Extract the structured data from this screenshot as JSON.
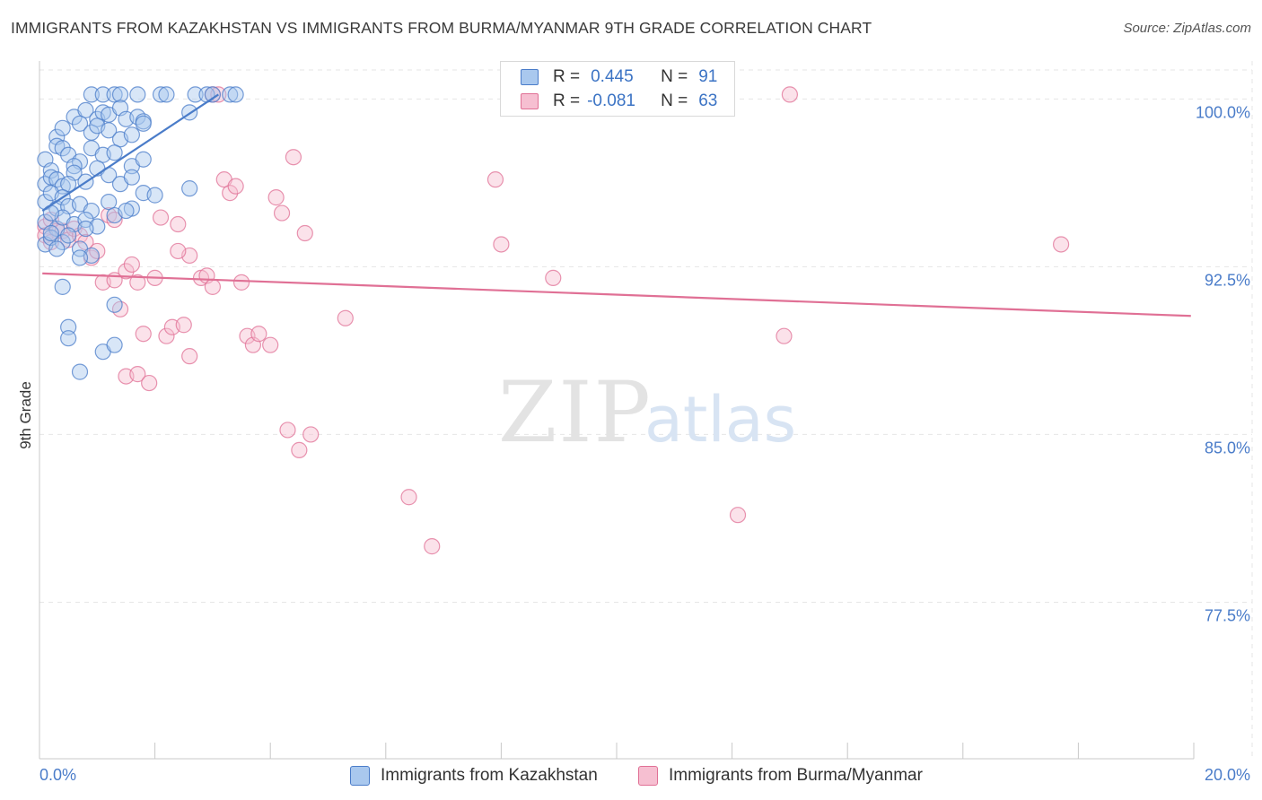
{
  "header": {
    "title": "IMMIGRANTS FROM KAZAKHSTAN VS IMMIGRANTS FROM BURMA/MYANMAR 9TH GRADE CORRELATION CHART",
    "source": "Source: ZipAtlas.com"
  },
  "watermark": {
    "zip": "ZIP",
    "atlas": "atlas"
  },
  "legend": {
    "series": [
      {
        "r_label": "R =",
        "r_value": "0.445",
        "n_label": "N =",
        "n_value": "91"
      },
      {
        "r_label": "R =",
        "r_value": "-0.081",
        "n_label": "N =",
        "n_value": "63"
      }
    ]
  },
  "chart_data": {
    "type": "scatter",
    "title": "IMMIGRANTS FROM KAZAKHSTAN VS IMMIGRANTS FROM BURMA/MYANMAR 9TH GRADE CORRELATION CHART",
    "xlabel": "",
    "ylabel": "9th Grade",
    "xlim": [
      0,
      20
    ],
    "ylim": [
      70.5,
      101.7
    ],
    "x_tick_labels": [
      "0.0%",
      "20.0%"
    ],
    "y_ticks": [
      77.5,
      85.0,
      92.5,
      100.0
    ],
    "y_tick_labels": [
      "77.5%",
      "85.0%",
      "92.5%",
      "100.0%"
    ],
    "grid": true,
    "colors": {
      "blue": "#4a7cc9",
      "blue_fill": "#a9c8ee",
      "pink": "#e07095",
      "pink_fill": "#f6bfd1",
      "grid": "#e6e6e6",
      "axis": "#c8c8c8"
    },
    "series": [
      {
        "name": "Immigrants from Kazakhstan",
        "color": "blue",
        "R": 0.445,
        "N": 91,
        "trend": {
          "x": [
            0.05,
            3.1
          ],
          "y": [
            95.0,
            100.2
          ]
        },
        "points": [
          [
            0.9,
            100.2
          ],
          [
            1.1,
            100.2
          ],
          [
            1.3,
            100.2
          ],
          [
            1.4,
            100.2
          ],
          [
            1.7,
            100.2
          ],
          [
            2.1,
            100.2
          ],
          [
            2.2,
            100.2
          ],
          [
            2.7,
            100.2
          ],
          [
            2.9,
            100.2
          ],
          [
            3.0,
            100.2
          ],
          [
            3.3,
            100.2
          ],
          [
            3.4,
            100.2
          ],
          [
            0.6,
            99.2
          ],
          [
            0.8,
            99.5
          ],
          [
            1.0,
            99.1
          ],
          [
            1.1,
            99.4
          ],
          [
            1.2,
            99.3
          ],
          [
            1.4,
            99.6
          ],
          [
            1.5,
            99.1
          ],
          [
            1.7,
            99.2
          ],
          [
            1.8,
            99.0
          ],
          [
            2.6,
            99.4
          ],
          [
            0.3,
            98.3
          ],
          [
            0.4,
            98.7
          ],
          [
            0.7,
            98.9
          ],
          [
            0.9,
            98.5
          ],
          [
            1.0,
            98.8
          ],
          [
            1.2,
            98.6
          ],
          [
            1.4,
            98.2
          ],
          [
            1.6,
            98.4
          ],
          [
            1.8,
            98.9
          ],
          [
            0.1,
            97.3
          ],
          [
            0.3,
            97.9
          ],
          [
            0.4,
            97.8
          ],
          [
            0.5,
            97.5
          ],
          [
            0.7,
            97.2
          ],
          [
            0.9,
            97.8
          ],
          [
            1.1,
            97.5
          ],
          [
            1.3,
            97.6
          ],
          [
            1.6,
            97.0
          ],
          [
            1.8,
            97.3
          ],
          [
            0.2,
            96.8
          ],
          [
            0.6,
            97.0
          ],
          [
            0.1,
            96.2
          ],
          [
            0.2,
            96.5
          ],
          [
            0.3,
            96.4
          ],
          [
            0.4,
            96.1
          ],
          [
            0.6,
            96.7
          ],
          [
            0.8,
            96.3
          ],
          [
            1.0,
            96.9
          ],
          [
            1.2,
            96.6
          ],
          [
            1.4,
            96.2
          ],
          [
            1.6,
            96.5
          ],
          [
            2.6,
            96.0
          ],
          [
            0.5,
            96.2
          ],
          [
            0.1,
            95.4
          ],
          [
            0.2,
            95.8
          ],
          [
            0.3,
            95.1
          ],
          [
            0.4,
            95.6
          ],
          [
            0.5,
            95.2
          ],
          [
            0.7,
            95.3
          ],
          [
            0.9,
            95.0
          ],
          [
            1.2,
            95.4
          ],
          [
            1.6,
            95.1
          ],
          [
            1.8,
            95.8
          ],
          [
            2.0,
            95.7
          ],
          [
            0.1,
            94.5
          ],
          [
            0.3,
            94.2
          ],
          [
            0.4,
            94.7
          ],
          [
            0.6,
            94.4
          ],
          [
            0.8,
            94.6
          ],
          [
            1.0,
            94.3
          ],
          [
            1.3,
            94.8
          ],
          [
            0.2,
            94.9
          ],
          [
            0.1,
            93.5
          ],
          [
            0.2,
            93.8
          ],
          [
            0.4,
            93.6
          ],
          [
            0.5,
            93.9
          ],
          [
            0.7,
            93.3
          ],
          [
            0.9,
            93.0
          ],
          [
            0.3,
            93.3
          ],
          [
            0.4,
            91.6
          ],
          [
            0.7,
            92.9
          ],
          [
            1.3,
            90.8
          ],
          [
            0.5,
            89.8
          ],
          [
            0.5,
            89.3
          ],
          [
            1.1,
            88.7
          ],
          [
            1.3,
            89.0
          ],
          [
            0.7,
            87.8
          ],
          [
            0.2,
            94.0
          ],
          [
            0.8,
            94.2
          ],
          [
            1.5,
            95.0
          ]
        ]
      },
      {
        "name": "Immigrants from Burma/Myanmar",
        "color": "pink",
        "R": -0.081,
        "N": 63,
        "trend": {
          "x": [
            0.05,
            19.95
          ],
          "y": [
            92.2,
            90.3
          ]
        },
        "points": [
          [
            0.1,
            94.3
          ],
          [
            0.2,
            94.6
          ],
          [
            0.3,
            94.1
          ],
          [
            0.1,
            93.9
          ],
          [
            0.2,
            93.6
          ],
          [
            0.4,
            94.1
          ],
          [
            0.5,
            93.7
          ],
          [
            0.6,
            94.2
          ],
          [
            0.7,
            93.9
          ],
          [
            0.8,
            93.6
          ],
          [
            0.9,
            92.9
          ],
          [
            1.0,
            93.2
          ],
          [
            1.1,
            91.8
          ],
          [
            1.3,
            91.9
          ],
          [
            1.2,
            94.8
          ],
          [
            1.3,
            94.6
          ],
          [
            1.4,
            90.6
          ],
          [
            1.5,
            92.3
          ],
          [
            1.6,
            92.6
          ],
          [
            1.7,
            91.8
          ],
          [
            1.5,
            87.6
          ],
          [
            1.7,
            87.7
          ],
          [
            1.8,
            89.5
          ],
          [
            1.9,
            87.3
          ],
          [
            2.0,
            92.0
          ],
          [
            2.2,
            89.4
          ],
          [
            2.3,
            89.8
          ],
          [
            2.5,
            89.9
          ],
          [
            2.6,
            88.5
          ],
          [
            2.1,
            94.7
          ],
          [
            2.4,
            94.4
          ],
          [
            2.6,
            93.0
          ],
          [
            2.8,
            92.0
          ],
          [
            2.9,
            92.1
          ],
          [
            3.0,
            91.6
          ],
          [
            3.2,
            96.4
          ],
          [
            3.3,
            95.8
          ],
          [
            3.4,
            96.1
          ],
          [
            3.5,
            91.8
          ],
          [
            3.6,
            89.4
          ],
          [
            3.7,
            89.0
          ],
          [
            3.8,
            89.5
          ],
          [
            4.0,
            89.0
          ],
          [
            4.1,
            95.6
          ],
          [
            4.2,
            94.9
          ],
          [
            4.4,
            97.4
          ],
          [
            4.6,
            94.0
          ],
          [
            4.3,
            85.2
          ],
          [
            4.5,
            84.3
          ],
          [
            4.7,
            85.0
          ],
          [
            5.3,
            90.2
          ],
          [
            6.4,
            82.2
          ],
          [
            6.8,
            80.0
          ],
          [
            7.9,
            96.4
          ],
          [
            8.0,
            93.5
          ],
          [
            8.9,
            92.0
          ],
          [
            3.0,
            100.2
          ],
          [
            3.1,
            100.2
          ],
          [
            12.1,
            81.4
          ],
          [
            12.9,
            89.4
          ],
          [
            13.0,
            100.2
          ],
          [
            17.7,
            93.5
          ],
          [
            2.4,
            93.2
          ]
        ]
      }
    ]
  },
  "bottom_legend": {
    "items": [
      {
        "label": "Immigrants from Kazakhstan"
      },
      {
        "label": "Immigrants from Burma/Myanmar"
      }
    ]
  }
}
